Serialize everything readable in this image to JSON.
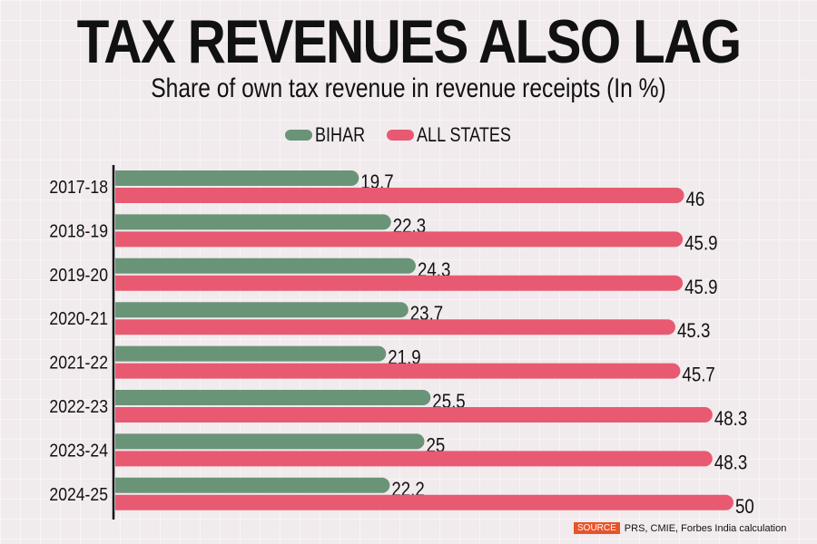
{
  "header": {
    "title": "TAX REVENUES ALSO LAG",
    "subtitle": "Share of own tax revenue in revenue receipts (In %)"
  },
  "legend": [
    {
      "label": "BIHAR",
      "color": "#6a9477"
    },
    {
      "label": "ALL STATES",
      "color": "#e85a72"
    }
  ],
  "source": {
    "tag": "SOURCE",
    "text": "PRS, CMIE, Forbes India calculation"
  },
  "chart_data": {
    "type": "bar",
    "orientation": "horizontal",
    "title": "TAX REVENUES ALSO LAG",
    "subtitle": "Share of own tax revenue in revenue receipts (In %)",
    "xlabel": "",
    "ylabel": "",
    "xlim": [
      0,
      50
    ],
    "grid": false,
    "legend_position": "top-center",
    "categories": [
      "2017-18",
      "2018-19",
      "2019-20",
      "2020-21",
      "2021-22",
      "2022-23",
      "2023-24",
      "2024-25"
    ],
    "series": [
      {
        "name": "BIHAR",
        "color": "#6a9477",
        "values": [
          19.7,
          22.3,
          24.3,
          23.7,
          21.9,
          25.5,
          25,
          22.2
        ]
      },
      {
        "name": "ALL STATES",
        "color": "#e85a72",
        "values": [
          46,
          45.9,
          45.9,
          45.3,
          45.7,
          48.3,
          48.3,
          50
        ]
      }
    ]
  }
}
